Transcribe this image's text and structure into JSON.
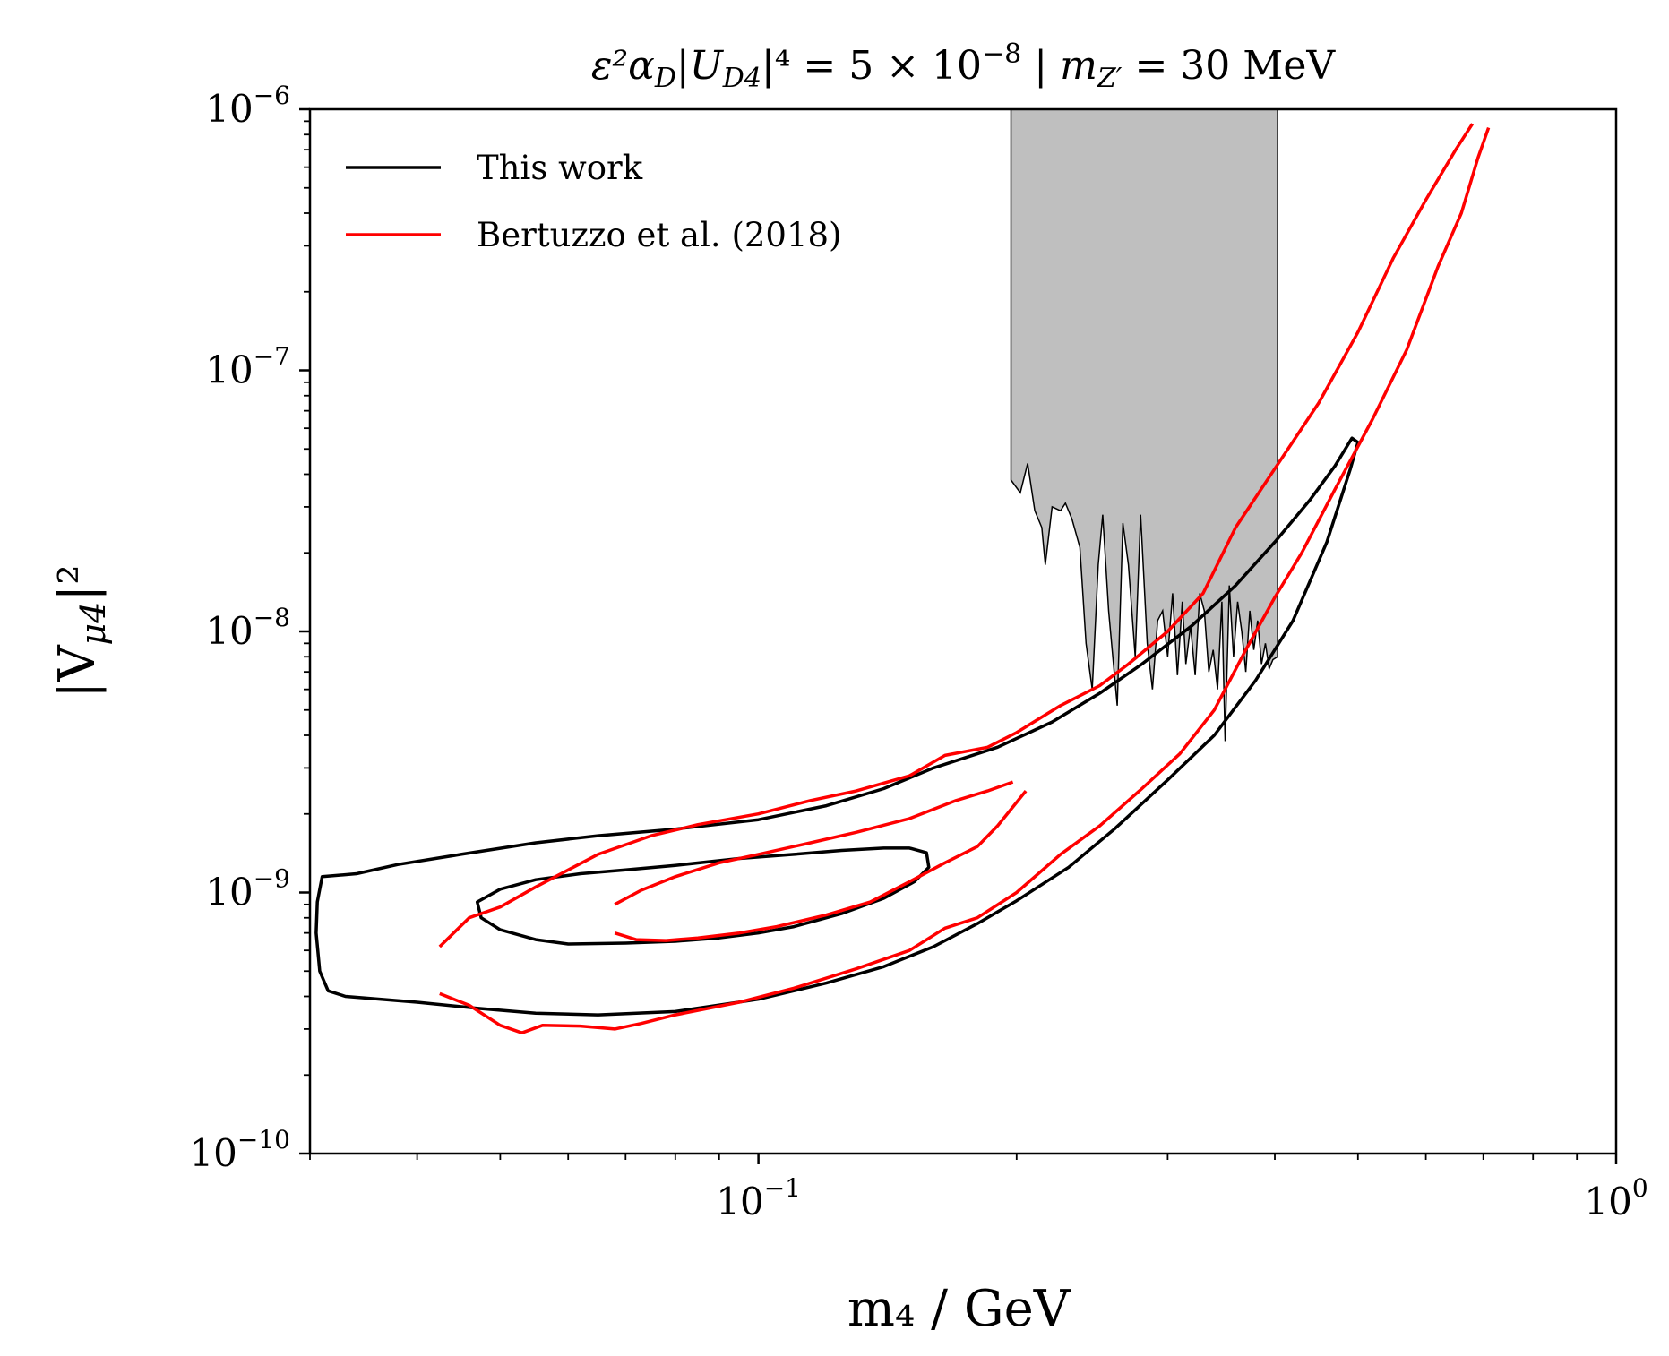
{
  "chart_data": {
    "type": "line",
    "title_parts": {
      "prefix": "ε²α",
      "sub1": "D",
      "mid": "|U",
      "sub2": "D4",
      "sup1": "|⁴ = 5 × 10",
      "exp": "−8",
      "sep": " | m",
      "sub3": "Z′",
      "suffix": " = 30 MeV"
    },
    "xlabel": "m₄ / GeV",
    "ylabel": "|V",
    "ylabel_sub": "μ4",
    "ylabel_sup": "|²",
    "xscale": "log",
    "yscale": "log",
    "xlim": [
      0.03,
      1.0
    ],
    "ylim": [
      1e-10,
      1e-06
    ],
    "x_major_ticks": [
      {
        "value": 0.1,
        "base": "10",
        "exp": "−1"
      },
      {
        "value": 1.0,
        "base": "10",
        "exp": "0"
      }
    ],
    "y_major_ticks": [
      {
        "value": 1e-10,
        "base": "10",
        "exp": "−10"
      },
      {
        "value": 1e-09,
        "base": "10",
        "exp": "−9"
      },
      {
        "value": 1e-08,
        "base": "10",
        "exp": "−8"
      },
      {
        "value": 1e-07,
        "base": "10",
        "exp": "−7"
      },
      {
        "value": 1e-06,
        "base": "10",
        "exp": "−6"
      }
    ],
    "legend": {
      "position": "top-left",
      "entries": [
        {
          "label": "This work",
          "color": "#000000"
        },
        {
          "label": "Bertuzzo et al. (2018)",
          "color": "#ff0000"
        }
      ]
    },
    "shaded_region": {
      "color": "#bfbfbf",
      "edge_color": "#000000",
      "points": [
        [
          0.197,
          1e-06
        ],
        [
          0.197,
          3.8e-08
        ],
        [
          0.202,
          3.4e-08
        ],
        [
          0.206,
          4.4e-08
        ],
        [
          0.21,
          2.9e-08
        ],
        [
          0.214,
          2.5e-08
        ],
        [
          0.216,
          1.8e-08
        ],
        [
          0.22,
          3e-08
        ],
        [
          0.225,
          2.9e-08
        ],
        [
          0.228,
          3.1e-08
        ],
        [
          0.232,
          2.7e-08
        ],
        [
          0.237,
          2.1e-08
        ],
        [
          0.241,
          9e-09
        ],
        [
          0.245,
          6e-09
        ],
        [
          0.249,
          1.8e-08
        ],
        [
          0.252,
          2.8e-08
        ],
        [
          0.256,
          1.2e-08
        ],
        [
          0.262,
          5.2e-09
        ],
        [
          0.266,
          2.6e-08
        ],
        [
          0.27,
          1.8e-08
        ],
        [
          0.275,
          8e-09
        ],
        [
          0.279,
          2.8e-08
        ],
        [
          0.284,
          9e-09
        ],
        [
          0.288,
          6e-09
        ],
        [
          0.292,
          1.1e-08
        ],
        [
          0.296,
          1.2e-08
        ],
        [
          0.3,
          8e-09
        ],
        [
          0.304,
          1.4e-08
        ],
        [
          0.308,
          6.8e-09
        ],
        [
          0.312,
          1.3e-08
        ],
        [
          0.315,
          7.5e-09
        ],
        [
          0.319,
          1.05e-08
        ],
        [
          0.323,
          6.8e-09
        ],
        [
          0.327,
          1.4e-08
        ],
        [
          0.331,
          1.2e-08
        ],
        [
          0.335,
          7e-09
        ],
        [
          0.339,
          8.5e-09
        ],
        [
          0.343,
          6e-09
        ],
        [
          0.347,
          1.3e-08
        ],
        [
          0.35,
          3.8e-09
        ],
        [
          0.354,
          1.5e-08
        ],
        [
          0.358,
          8e-09
        ],
        [
          0.362,
          1.3e-08
        ],
        [
          0.366,
          1e-08
        ],
        [
          0.37,
          7e-09
        ],
        [
          0.374,
          1.2e-08
        ],
        [
          0.378,
          8.5e-09
        ],
        [
          0.382,
          1.1e-08
        ],
        [
          0.386,
          7.5e-09
        ],
        [
          0.39,
          9e-09
        ],
        [
          0.394,
          7.2e-09
        ],
        [
          0.398,
          7.8e-09
        ],
        [
          0.403,
          8e-09
        ],
        [
          0.403,
          1e-06
        ]
      ]
    },
    "series": [
      {
        "name": "This work (outer contour)",
        "color": "#000000",
        "closed": true,
        "points": [
          [
            0.0306,
            9.2e-10
          ],
          [
            0.0305,
            7e-10
          ],
          [
            0.0308,
            5e-10
          ],
          [
            0.0315,
            4.2e-10
          ],
          [
            0.033,
            4e-10
          ],
          [
            0.04,
            3.8e-10
          ],
          [
            0.047,
            3.6e-10
          ],
          [
            0.055,
            3.45e-10
          ],
          [
            0.065,
            3.4e-10
          ],
          [
            0.08,
            3.5e-10
          ],
          [
            0.1,
            3.9e-10
          ],
          [
            0.12,
            4.5e-10
          ],
          [
            0.14,
            5.2e-10
          ],
          [
            0.16,
            6.2e-10
          ],
          [
            0.18,
            7.6e-10
          ],
          [
            0.2,
            9.3e-10
          ],
          [
            0.23,
            1.25e-09
          ],
          [
            0.26,
            1.75e-09
          ],
          [
            0.3,
            2.7e-09
          ],
          [
            0.34,
            4e-09
          ],
          [
            0.38,
            6.5e-09
          ],
          [
            0.42,
            1.1e-08
          ],
          [
            0.46,
            2.2e-08
          ],
          [
            0.49,
            4.2e-08
          ],
          [
            0.5,
            5.3e-08
          ],
          [
            0.492,
            5.5e-08
          ],
          [
            0.47,
            4.3e-08
          ],
          [
            0.44,
            3.2e-08
          ],
          [
            0.4,
            2.2e-08
          ],
          [
            0.36,
            1.5e-08
          ],
          [
            0.32,
            1.05e-08
          ],
          [
            0.28,
            7.5e-09
          ],
          [
            0.25,
            5.8e-09
          ],
          [
            0.22,
            4.5e-09
          ],
          [
            0.19,
            3.6e-09
          ],
          [
            0.16,
            3e-09
          ],
          [
            0.14,
            2.5e-09
          ],
          [
            0.12,
            2.15e-09
          ],
          [
            0.1,
            1.9e-09
          ],
          [
            0.08,
            1.75e-09
          ],
          [
            0.065,
            1.65e-09
          ],
          [
            0.055,
            1.55e-09
          ],
          [
            0.045,
            1.4e-09
          ],
          [
            0.038,
            1.28e-09
          ],
          [
            0.034,
            1.18e-09
          ],
          [
            0.031,
            1.15e-09
          ]
        ]
      },
      {
        "name": "This work (inner contour)",
        "color": "#000000",
        "closed": true,
        "points": [
          [
            0.0475,
            8e-10
          ],
          [
            0.05,
            7.2e-10
          ],
          [
            0.055,
            6.6e-10
          ],
          [
            0.06,
            6.35e-10
          ],
          [
            0.07,
            6.4e-10
          ],
          [
            0.08,
            6.5e-10
          ],
          [
            0.09,
            6.7e-10
          ],
          [
            0.1,
            7e-10
          ],
          [
            0.11,
            7.4e-10
          ],
          [
            0.125,
            8.3e-10
          ],
          [
            0.14,
            9.5e-10
          ],
          [
            0.152,
            1.1e-09
          ],
          [
            0.158,
            1.25e-09
          ],
          [
            0.157,
            1.42e-09
          ],
          [
            0.15,
            1.48e-09
          ],
          [
            0.14,
            1.48e-09
          ],
          [
            0.125,
            1.45e-09
          ],
          [
            0.11,
            1.4e-09
          ],
          [
            0.095,
            1.35e-09
          ],
          [
            0.08,
            1.27e-09
          ],
          [
            0.07,
            1.22e-09
          ],
          [
            0.062,
            1.18e-09
          ],
          [
            0.055,
            1.12e-09
          ],
          [
            0.05,
            1.03e-09
          ],
          [
            0.047,
            9.2e-10
          ]
        ]
      },
      {
        "name": "Bertuzzo et al. (2018) lower-left branch",
        "color": "#ff0000",
        "closed": false,
        "points": [
          [
            0.0425,
            4.1e-10
          ],
          [
            0.046,
            3.7e-10
          ],
          [
            0.05,
            3.1e-10
          ],
          [
            0.053,
            2.9e-10
          ],
          [
            0.056,
            3.1e-10
          ],
          [
            0.062,
            3.08e-10
          ],
          [
            0.068,
            3e-10
          ],
          [
            0.073,
            3.15e-10
          ],
          [
            0.08,
            3.4e-10
          ],
          [
            0.095,
            3.8e-10
          ],
          [
            0.11,
            4.3e-10
          ],
          [
            0.13,
            5.1e-10
          ],
          [
            0.15,
            6e-10
          ],
          [
            0.165,
            7.3e-10
          ],
          [
            0.18,
            8e-10
          ],
          [
            0.2,
            1e-09
          ],
          [
            0.225,
            1.4e-09
          ],
          [
            0.25,
            1.8e-09
          ],
          [
            0.28,
            2.5e-09
          ],
          [
            0.31,
            3.4e-09
          ],
          [
            0.34,
            5e-09
          ],
          [
            0.37,
            8.5e-09
          ],
          [
            0.4,
            1.35e-08
          ],
          [
            0.43,
            2e-08
          ],
          [
            0.47,
            3.5e-08
          ],
          [
            0.52,
            6.5e-08
          ],
          [
            0.57,
            1.2e-07
          ],
          [
            0.62,
            2.5e-07
          ],
          [
            0.66,
            4e-07
          ],
          [
            0.69,
            6.5e-07
          ],
          [
            0.71,
            8.5e-07
          ]
        ]
      },
      {
        "name": "Bertuzzo et al. (2018) upper branch",
        "color": "#ff0000",
        "closed": false,
        "points": [
          [
            0.0425,
            6.2e-10
          ],
          [
            0.046,
            8e-10
          ],
          [
            0.05,
            8.8e-10
          ],
          [
            0.055,
            1.05e-09
          ],
          [
            0.06,
            1.22e-09
          ],
          [
            0.065,
            1.4e-09
          ],
          [
            0.075,
            1.65e-09
          ],
          [
            0.085,
            1.82e-09
          ],
          [
            0.1,
            2e-09
          ],
          [
            0.115,
            2.25e-09
          ],
          [
            0.13,
            2.45e-09
          ],
          [
            0.15,
            2.8e-09
          ],
          [
            0.165,
            3.35e-09
          ],
          [
            0.185,
            3.6e-09
          ],
          [
            0.2,
            4.1e-09
          ],
          [
            0.225,
            5.2e-09
          ],
          [
            0.25,
            6.2e-09
          ],
          [
            0.27,
            7.5e-09
          ],
          [
            0.3,
            1e-08
          ],
          [
            0.33,
            1.4e-08
          ],
          [
            0.36,
            2.5e-08
          ],
          [
            0.4,
            4.2e-08
          ],
          [
            0.45,
            7.5e-08
          ],
          [
            0.5,
            1.4e-07
          ],
          [
            0.55,
            2.7e-07
          ],
          [
            0.6,
            4.5e-07
          ],
          [
            0.65,
            7e-07
          ],
          [
            0.68,
            8.8e-07
          ]
        ]
      },
      {
        "name": "Bertuzzo et al. (2018) inner lower",
        "color": "#ff0000",
        "closed": false,
        "points": [
          [
            0.068,
            7e-10
          ],
          [
            0.072,
            6.6e-10
          ],
          [
            0.078,
            6.55e-10
          ],
          [
            0.085,
            6.7e-10
          ],
          [
            0.095,
            7e-10
          ],
          [
            0.105,
            7.4e-10
          ],
          [
            0.12,
            8.2e-10
          ],
          [
            0.135,
            9.2e-10
          ],
          [
            0.15,
            1.1e-09
          ],
          [
            0.165,
            1.3e-09
          ],
          [
            0.18,
            1.5e-09
          ],
          [
            0.19,
            1.8e-09
          ],
          [
            0.205,
            2.45e-09
          ]
        ]
      },
      {
        "name": "Bertuzzo et al. (2018) inner upper",
        "color": "#ff0000",
        "closed": false,
        "points": [
          [
            0.068,
            9e-10
          ],
          [
            0.073,
            1.02e-09
          ],
          [
            0.08,
            1.15e-09
          ],
          [
            0.09,
            1.3e-09
          ],
          [
            0.1,
            1.4e-09
          ],
          [
            0.115,
            1.55e-09
          ],
          [
            0.13,
            1.7e-09
          ],
          [
            0.15,
            1.92e-09
          ],
          [
            0.17,
            2.25e-09
          ],
          [
            0.185,
            2.45e-09
          ],
          [
            0.198,
            2.65e-09
          ]
        ]
      }
    ]
  }
}
